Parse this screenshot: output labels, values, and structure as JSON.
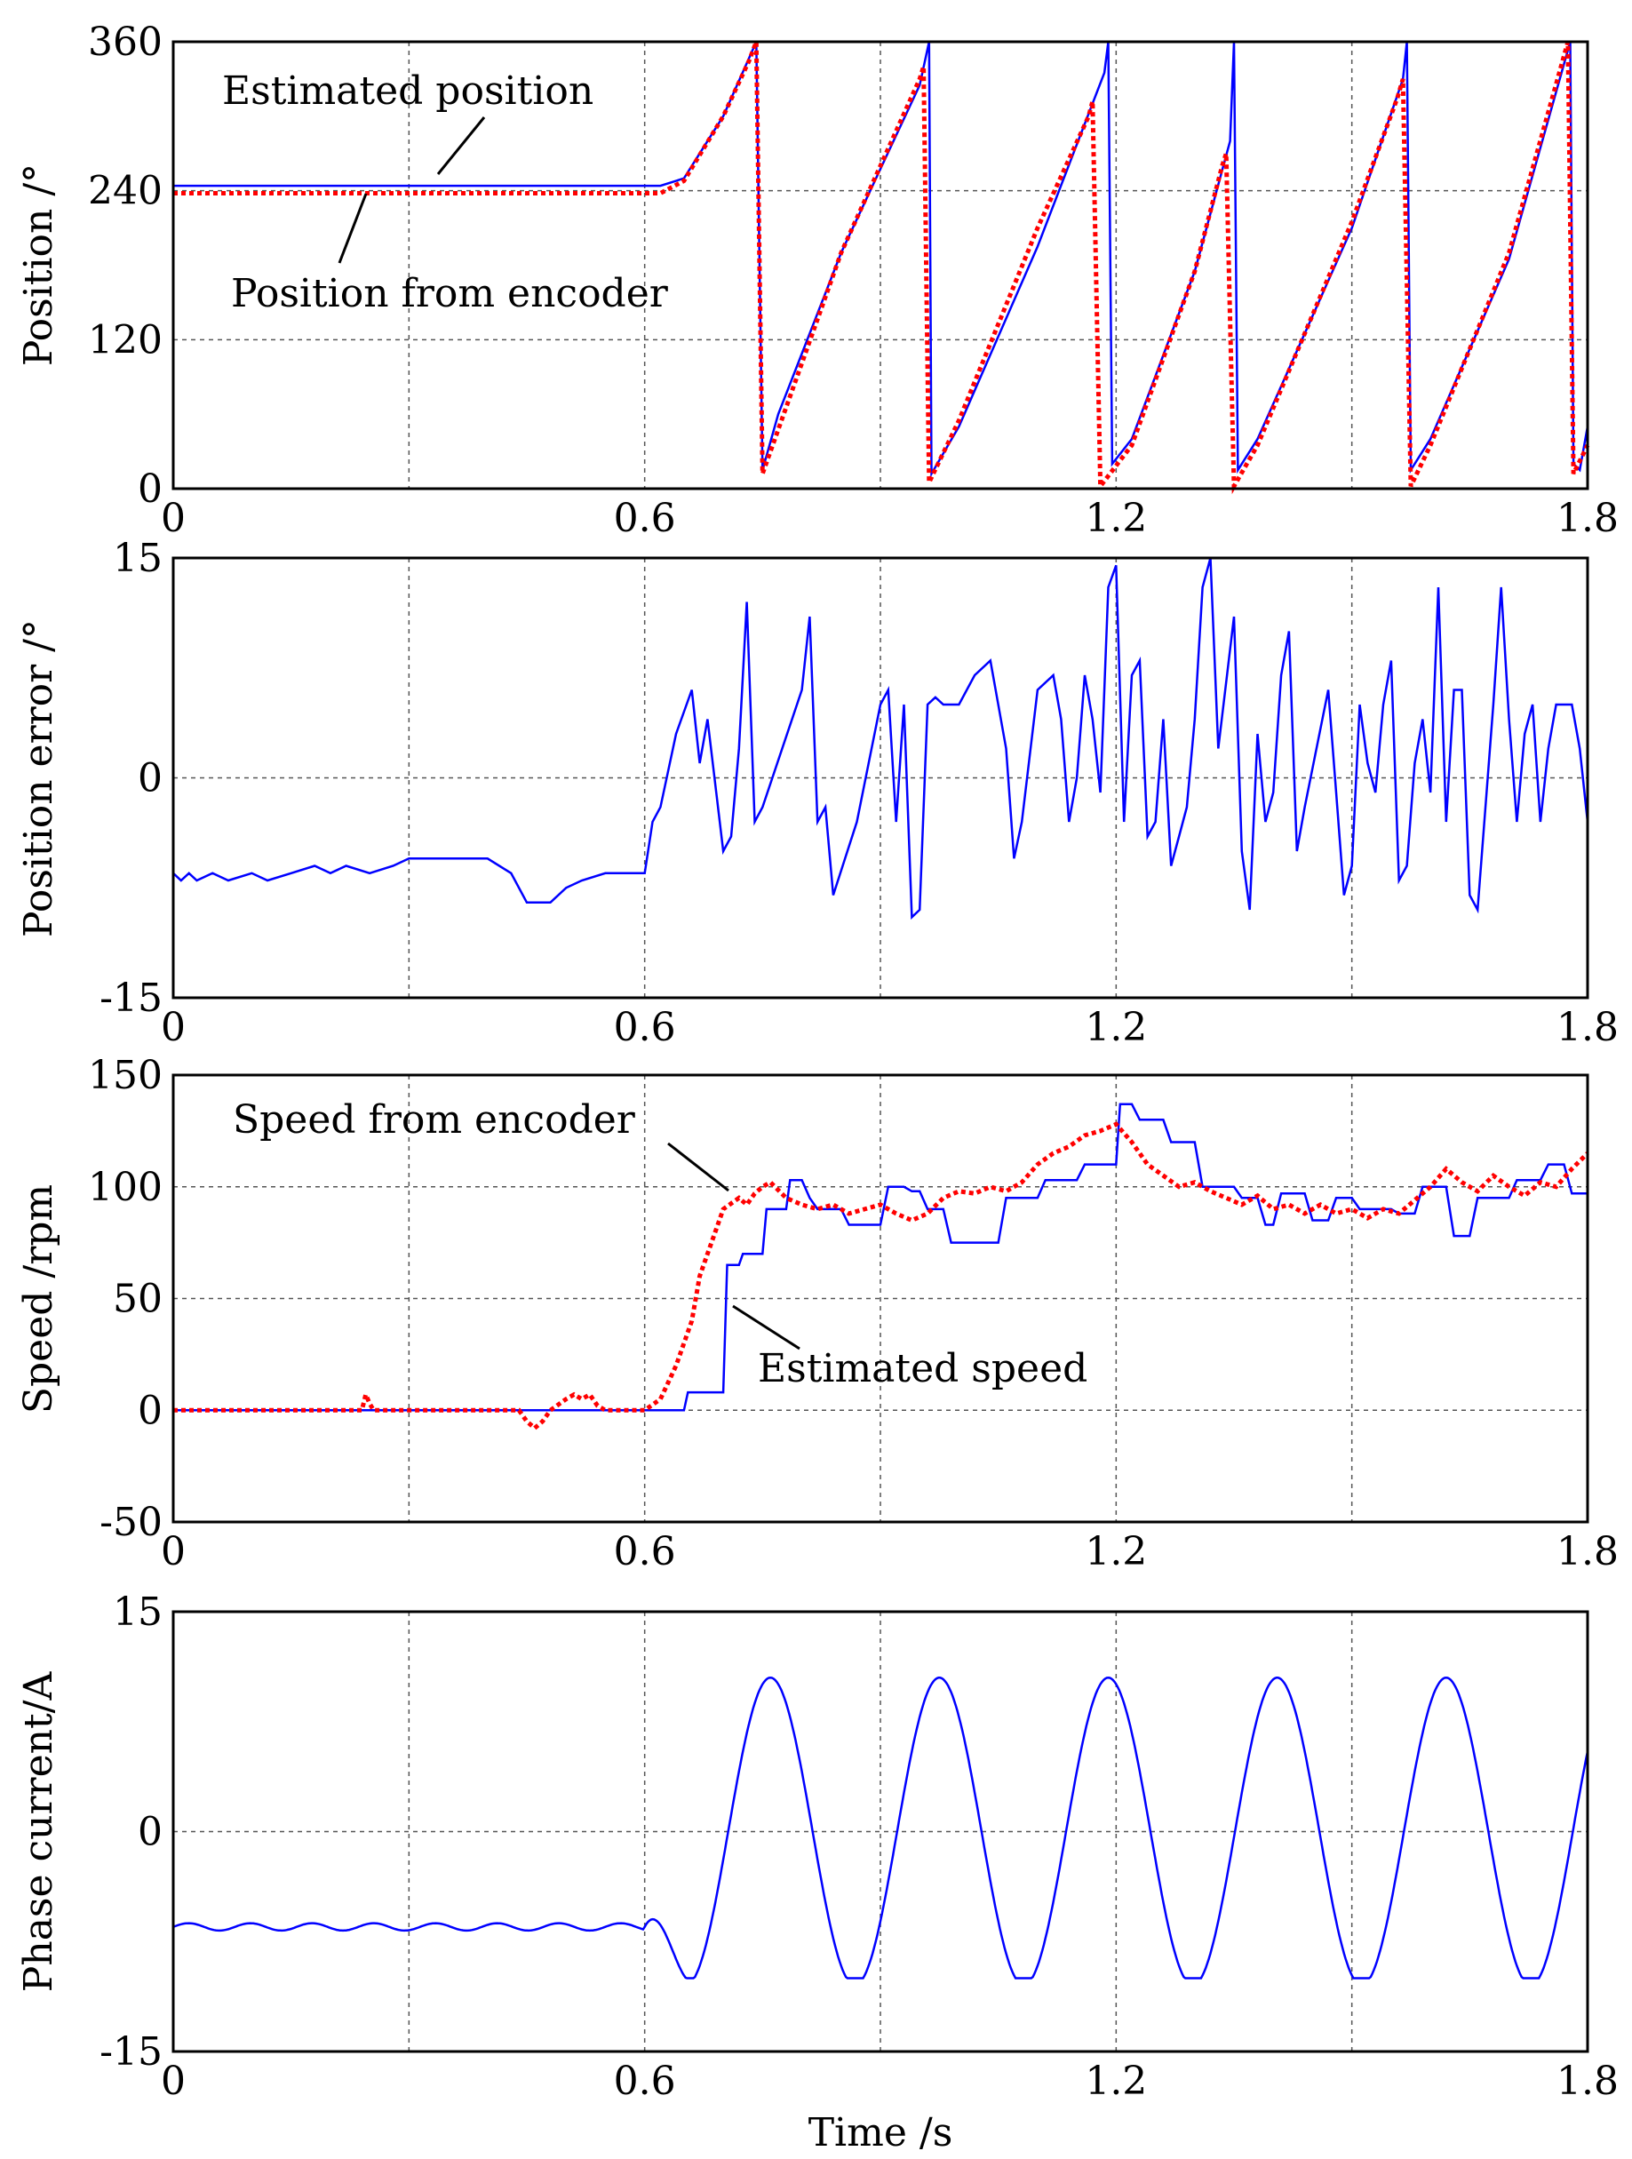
{
  "figure": {
    "xlabel": "Time /s"
  },
  "chart_data": [
    {
      "type": "line",
      "name": "position",
      "ylabel": "Position /°",
      "xlim": [
        0,
        1.8
      ],
      "ylim": [
        0,
        360
      ],
      "xticks": [
        0,
        0.6,
        1.2,
        1.8
      ],
      "xtick_labels": [
        "0",
        "0.6",
        "1.2",
        "1.8"
      ],
      "yticks": [
        0,
        120,
        240,
        360
      ],
      "ytick_labels": [
        "0",
        "120",
        "240",
        "360"
      ],
      "grid": true,
      "series": [
        {
          "name": "Estimated position",
          "color": "#0000ff",
          "style": "solid",
          "x": [
            0,
            0.62,
            0.65,
            0.7,
            0.735,
            0.742,
            0.75,
            0.77,
            0.85,
            0.95,
            0.962,
            0.965,
            1.0,
            1.1,
            1.185,
            1.19,
            1.195,
            1.22,
            1.3,
            1.345,
            1.35,
            1.355,
            1.38,
            1.5,
            1.565,
            1.57,
            1.575,
            1.6,
            1.7,
            1.778,
            1.782,
            1.79,
            1.8
          ],
          "y": [
            244,
            244,
            250,
            300,
            350,
            365,
            15,
            60,
            190,
            325,
            365,
            12,
            50,
            195,
            335,
            365,
            20,
            40,
            175,
            280,
            365,
            15,
            40,
            210,
            330,
            365,
            15,
            40,
            185,
            365,
            20,
            15,
            50
          ]
        },
        {
          "name": "Position from encoder",
          "color": "#ff0000",
          "style": "dotted",
          "x": [
            0,
            0.62,
            0.65,
            0.7,
            0.733,
            0.742,
            0.75,
            0.85,
            0.95,
            0.955,
            0.962,
            1.0,
            1.1,
            1.165,
            1.17,
            1.18,
            1.22,
            1.3,
            1.335,
            1.34,
            1.35,
            1.38,
            1.5,
            1.558,
            1.565,
            1.575,
            1.6,
            1.7,
            1.775,
            1.782,
            1.8
          ],
          "y": [
            238,
            238,
            248,
            300,
            345,
            365,
            12,
            190,
            330,
            340,
            5,
            55,
            210,
            300,
            312,
            2,
            35,
            175,
            260,
            270,
            2,
            35,
            215,
            315,
            330,
            2,
            35,
            190,
            365,
            12,
            35
          ]
        }
      ],
      "annotations": [
        {
          "text": "Estimated position"
        },
        {
          "text": "Position from encoder"
        }
      ]
    },
    {
      "type": "line",
      "name": "position_error",
      "ylabel": "Position error /°",
      "xlim": [
        0,
        1.8
      ],
      "ylim": [
        -15,
        15
      ],
      "xticks": [
        0,
        0.6,
        1.2,
        1.8
      ],
      "xtick_labels": [
        "0",
        "0.6",
        "1.2",
        "1.8"
      ],
      "yticks": [
        -15,
        0,
        15
      ],
      "ytick_labels": [
        "-15",
        "0",
        "15"
      ],
      "grid": true,
      "series": [
        {
          "name": "Position error",
          "color": "#0000ff",
          "style": "solid",
          "x": [
            0,
            0.01,
            0.02,
            0.03,
            0.05,
            0.07,
            0.1,
            0.12,
            0.15,
            0.18,
            0.2,
            0.22,
            0.25,
            0.28,
            0.3,
            0.32,
            0.35,
            0.38,
            0.4,
            0.43,
            0.45,
            0.48,
            0.5,
            0.52,
            0.55,
            0.57,
            0.6,
            0.61,
            0.62,
            0.64,
            0.66,
            0.67,
            0.68,
            0.7,
            0.71,
            0.72,
            0.73,
            0.74,
            0.75,
            0.8,
            0.81,
            0.82,
            0.83,
            0.84,
            0.87,
            0.9,
            0.91,
            0.92,
            0.93,
            0.94,
            0.95,
            0.96,
            0.97,
            0.98,
            1.0,
            1.02,
            1.04,
            1.06,
            1.07,
            1.08,
            1.1,
            1.12,
            1.13,
            1.14,
            1.15,
            1.16,
            1.17,
            1.18,
            1.19,
            1.2,
            1.21,
            1.22,
            1.23,
            1.24,
            1.25,
            1.26,
            1.27,
            1.28,
            1.29,
            1.3,
            1.31,
            1.32,
            1.33,
            1.35,
            1.36,
            1.37,
            1.38,
            1.39,
            1.4,
            1.41,
            1.42,
            1.43,
            1.44,
            1.47,
            1.48,
            1.49,
            1.5,
            1.51,
            1.52,
            1.53,
            1.54,
            1.55,
            1.56,
            1.57,
            1.58,
            1.59,
            1.6,
            1.61,
            1.62,
            1.63,
            1.64,
            1.65,
            1.66,
            1.68,
            1.69,
            1.7,
            1.71,
            1.72,
            1.73,
            1.74,
            1.75,
            1.76,
            1.77,
            1.78,
            1.79,
            1.8
          ],
          "y": [
            -6.5,
            -7,
            -6.5,
            -7,
            -6.5,
            -7,
            -6.5,
            -7,
            -6.5,
            -6,
            -6.5,
            -6,
            -6.5,
            -6,
            -5.5,
            -5.5,
            -5.5,
            -5.5,
            -5.5,
            -6.5,
            -8.5,
            -8.5,
            -7.5,
            -7,
            -6.5,
            -6.5,
            -6.5,
            -3,
            -2,
            3,
            6,
            1,
            4,
            -5,
            -4,
            2,
            12,
            -3,
            -2,
            6,
            11,
            -3,
            -2,
            -8,
            -3,
            5,
            6,
            -3,
            5,
            -9.5,
            -9,
            5,
            5.5,
            5,
            5,
            7,
            8,
            2,
            -5.5,
            -3,
            6,
            7,
            4,
            -3,
            0,
            7,
            4,
            -1,
            13,
            14.5,
            -3,
            7,
            8,
            -4,
            -3,
            4,
            -6,
            -4,
            -2,
            4,
            13,
            15,
            2,
            11,
            -5,
            -9,
            3,
            -3,
            -1,
            7,
            10,
            -5,
            -2,
            6,
            -1,
            -8,
            -6,
            5,
            1,
            -1,
            5,
            8,
            -7,
            -6,
            1,
            4,
            -1,
            13,
            -3,
            6,
            6,
            -8,
            -9,
            5,
            13,
            4,
            -3,
            3,
            5,
            -3,
            2,
            5,
            5,
            5,
            2,
            -3
          ],
          "y_note": "values approximate; trace continues"
        }
      ]
    },
    {
      "type": "line",
      "name": "speed",
      "ylabel": "Speed /rpm",
      "xlim": [
        0,
        1.8
      ],
      "ylim": [
        -50,
        150
      ],
      "xticks": [
        0,
        0.6,
        1.2,
        1.8
      ],
      "xtick_labels": [
        "0",
        "0.6",
        "1.2",
        "1.8"
      ],
      "yticks": [
        -50,
        0,
        50,
        100,
        150
      ],
      "ytick_labels": [
        "-50",
        "0",
        "50",
        "100",
        "150"
      ],
      "grid": true,
      "series": [
        {
          "name": "Estimated speed",
          "color": "#0000ff",
          "style": "solid",
          "x": [
            0,
            0.65,
            0.655,
            0.7,
            0.705,
            0.72,
            0.725,
            0.75,
            0.755,
            0.78,
            0.785,
            0.8,
            0.81,
            0.82,
            0.85,
            0.86,
            0.9,
            0.91,
            0.93,
            0.94,
            0.95,
            0.96,
            0.98,
            0.99,
            1.0,
            1.01,
            1.05,
            1.06,
            1.1,
            1.11,
            1.15,
            1.16,
            1.2,
            1.205,
            1.22,
            1.23,
            1.26,
            1.27,
            1.3,
            1.31,
            1.35,
            1.36,
            1.38,
            1.39,
            1.4,
            1.41,
            1.44,
            1.45,
            1.47,
            1.48,
            1.5,
            1.51,
            1.55,
            1.56,
            1.58,
            1.59,
            1.62,
            1.63,
            1.65,
            1.66,
            1.7,
            1.71,
            1.74,
            1.75,
            1.77,
            1.78,
            1.8
          ],
          "y": [
            0,
            0,
            8,
            8,
            65,
            65,
            70,
            70,
            90,
            90,
            103,
            103,
            95,
            90,
            90,
            83,
            83,
            100,
            100,
            98,
            98,
            90,
            90,
            75,
            75,
            75,
            75,
            95,
            95,
            103,
            103,
            110,
            110,
            137,
            137,
            130,
            130,
            120,
            120,
            100,
            100,
            95,
            95,
            83,
            83,
            97,
            97,
            85,
            85,
            95,
            95,
            90,
            90,
            88,
            88,
            100,
            100,
            78,
            78,
            95,
            95,
            103,
            103,
            110,
            110,
            97,
            97
          ]
        },
        {
          "name": "Speed from encoder",
          "color": "#ff0000",
          "style": "dotted",
          "x": [
            0,
            0.24,
            0.245,
            0.25,
            0.255,
            0.44,
            0.45,
            0.46,
            0.47,
            0.48,
            0.5,
            0.51,
            0.52,
            0.53,
            0.54,
            0.55,
            0.6,
            0.62,
            0.64,
            0.66,
            0.67,
            0.68,
            0.69,
            0.7,
            0.72,
            0.73,
            0.74,
            0.75,
            0.76,
            0.78,
            0.8,
            0.82,
            0.84,
            0.86,
            0.88,
            0.9,
            0.92,
            0.94,
            0.96,
            0.98,
            1.0,
            1.02,
            1.04,
            1.06,
            1.08,
            1.1,
            1.12,
            1.14,
            1.16,
            1.18,
            1.2,
            1.22,
            1.24,
            1.26,
            1.28,
            1.3,
            1.32,
            1.34,
            1.36,
            1.38,
            1.4,
            1.42,
            1.44,
            1.46,
            1.48,
            1.5,
            1.52,
            1.54,
            1.56,
            1.58,
            1.6,
            1.62,
            1.64,
            1.66,
            1.68,
            1.7,
            1.72,
            1.74,
            1.76,
            1.78,
            1.8
          ],
          "y": [
            0,
            0,
            7,
            3,
            0,
            0,
            -5,
            -8,
            -5,
            0,
            5,
            7,
            5,
            7,
            2,
            0,
            0,
            5,
            20,
            40,
            60,
            70,
            80,
            90,
            95,
            92,
            97,
            100,
            102,
            95,
            92,
            90,
            92,
            88,
            90,
            92,
            88,
            85,
            88,
            95,
            98,
            97,
            100,
            98,
            102,
            110,
            115,
            118,
            123,
            125,
            128,
            120,
            110,
            105,
            100,
            102,
            98,
            95,
            92,
            96,
            90,
            92,
            88,
            92,
            88,
            90,
            86,
            90,
            88,
            94,
            100,
            108,
            102,
            98,
            105,
            100,
            96,
            102,
            100,
            108,
            115
          ]
        }
      ],
      "annotations": [
        {
          "text": "Speed from encoder"
        },
        {
          "text": "Estimated speed"
        }
      ]
    },
    {
      "type": "line",
      "name": "phase_current",
      "ylabel": "Phase current/A",
      "xlim": [
        0,
        1.8
      ],
      "ylim": [
        -15,
        15
      ],
      "xticks": [
        0,
        0.6,
        1.2,
        1.8
      ],
      "xtick_labels": [
        "0",
        "0.6",
        "1.2",
        "1.8"
      ],
      "yticks": [
        -15,
        0,
        15
      ],
      "ytick_labels": [
        "-15",
        "0",
        "15"
      ],
      "grid": true,
      "series": [
        {
          "name": "Phase current",
          "color": "#0000ff",
          "style": "solid",
          "form": "sinusoid_after_start",
          "initial_value": -6.5,
          "start_time": 0.6,
          "period": 0.215,
          "amplitude": 10.5,
          "first_peak_time": 0.76
        }
      ]
    }
  ]
}
